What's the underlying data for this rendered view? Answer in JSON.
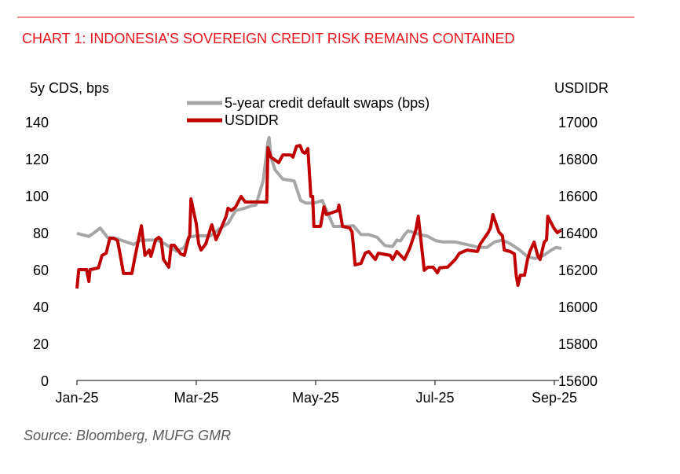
{
  "title": "CHART 1: INDONESIA’S SOVEREIGN CREDIT RISK REMAINS CONTAINED",
  "source": "Source: Bloomberg, MUFG GMR",
  "colors": {
    "accent": "#e8141c",
    "cds": "#a6a6a6",
    "usdidr": "#c00000"
  },
  "chart_data": {
    "type": "line",
    "title": "CHART 1: INDONESIA’S SOVEREIGN CREDIT RISK REMAINS CONTAINED",
    "x_unit": "months since Jan-25",
    "xlim": [
      0,
      8.15
    ],
    "x_ticks": [
      {
        "x": 0,
        "label": "Jan-25"
      },
      {
        "x": 2,
        "label": "Mar-25"
      },
      {
        "x": 4,
        "label": "May-25"
      },
      {
        "x": 6,
        "label": "Jul-25"
      },
      {
        "x": 8,
        "label": "Sep-25"
      }
    ],
    "ylabel_left": "5y CDS, bps",
    "ylabel_right": "USDIDR",
    "ylim_left": [
      0,
      140
    ],
    "ylim_right": [
      15600,
      17000
    ],
    "y_ticks_left": [
      "0",
      "20",
      "40",
      "60",
      "80",
      "100",
      "120",
      "140"
    ],
    "y_ticks_right": [
      "15600",
      "15800",
      "16000",
      "16200",
      "16400",
      "16600",
      "16800",
      "17000"
    ],
    "legend_position": "top-center",
    "series": [
      {
        "name": "5-year credit default swaps (bps)",
        "axis": "left",
        "points": [
          [
            0,
            79.6
          ],
          [
            0.2,
            78
          ],
          [
            0.29,
            80
          ],
          [
            0.39,
            82.5
          ],
          [
            0.51,
            77.5
          ],
          [
            0.68,
            76.6
          ],
          [
            0.95,
            73.6
          ],
          [
            1.05,
            75.7
          ],
          [
            1.21,
            76
          ],
          [
            1.34,
            76
          ],
          [
            1.47,
            74
          ],
          [
            1.67,
            70
          ],
          [
            1.8,
            72
          ],
          [
            1.87,
            77.5
          ],
          [
            2.0,
            78.3
          ],
          [
            2.24,
            78.3
          ],
          [
            2.37,
            81.7
          ],
          [
            2.53,
            85
          ],
          [
            2.66,
            92
          ],
          [
            2.79,
            93
          ],
          [
            2.92,
            94.5
          ],
          [
            3.0,
            95
          ],
          [
            3.12,
            108
          ],
          [
            3.2,
            129
          ],
          [
            3.22,
            131.5
          ],
          [
            3.25,
            121
          ],
          [
            3.32,
            114
          ],
          [
            3.45,
            109
          ],
          [
            3.64,
            108
          ],
          [
            3.68,
            104
          ],
          [
            3.75,
            97.4
          ],
          [
            3.84,
            96
          ],
          [
            3.97,
            96
          ],
          [
            4.11,
            97.4
          ],
          [
            4.17,
            93
          ],
          [
            4.3,
            83.4
          ],
          [
            4.5,
            83.4
          ],
          [
            4.63,
            83.8
          ],
          [
            4.76,
            79
          ],
          [
            4.89,
            79
          ],
          [
            5.03,
            77.5
          ],
          [
            5.16,
            73
          ],
          [
            5.29,
            72.5
          ],
          [
            5.36,
            76
          ],
          [
            5.42,
            75.5
          ],
          [
            5.49,
            79
          ],
          [
            5.55,
            81
          ],
          [
            5.75,
            79
          ],
          [
            5.88,
            78
          ],
          [
            6.01,
            75.7
          ],
          [
            6.14,
            75
          ],
          [
            6.34,
            75
          ],
          [
            6.47,
            74
          ],
          [
            6.61,
            73
          ],
          [
            6.74,
            72
          ],
          [
            6.87,
            72
          ],
          [
            7.0,
            75
          ],
          [
            7.13,
            76
          ],
          [
            7.26,
            74
          ],
          [
            7.42,
            70.6
          ],
          [
            7.55,
            67
          ],
          [
            7.68,
            66
          ],
          [
            7.82,
            67.7
          ],
          [
            7.95,
            70.6
          ],
          [
            8.03,
            72
          ],
          [
            8.12,
            71.5
          ]
        ]
      },
      {
        "name": "USDIDR",
        "axis": "right",
        "points": [
          [
            0,
            16098
          ],
          [
            0.03,
            16200
          ],
          [
            0.16,
            16200
          ],
          [
            0.2,
            16136
          ],
          [
            0.22,
            16200
          ],
          [
            0.29,
            16204
          ],
          [
            0.36,
            16210
          ],
          [
            0.42,
            16277
          ],
          [
            0.49,
            16289
          ],
          [
            0.55,
            16370
          ],
          [
            0.62,
            16370
          ],
          [
            0.68,
            16357
          ],
          [
            0.72,
            16289
          ],
          [
            0.78,
            16179
          ],
          [
            0.92,
            16179
          ],
          [
            0.97,
            16264
          ],
          [
            1.08,
            16438
          ],
          [
            1.14,
            16277
          ],
          [
            1.21,
            16306
          ],
          [
            1.24,
            16272
          ],
          [
            1.32,
            16362
          ],
          [
            1.37,
            16375
          ],
          [
            1.41,
            16362
          ],
          [
            1.45,
            16255
          ],
          [
            1.54,
            16213
          ],
          [
            1.58,
            16332
          ],
          [
            1.63,
            16332
          ],
          [
            1.74,
            16285
          ],
          [
            1.8,
            16277
          ],
          [
            1.87,
            16370
          ],
          [
            1.89,
            16383
          ],
          [
            1.91,
            16583
          ],
          [
            2.0,
            16447
          ],
          [
            2.04,
            16340
          ],
          [
            2.08,
            16306
          ],
          [
            2.16,
            16340
          ],
          [
            2.18,
            16362
          ],
          [
            2.26,
            16443
          ],
          [
            2.33,
            16362
          ],
          [
            2.39,
            16404
          ],
          [
            2.5,
            16489
          ],
          [
            2.53,
            16532
          ],
          [
            2.59,
            16520
          ],
          [
            2.66,
            16540
          ],
          [
            2.75,
            16596
          ],
          [
            2.82,
            16566
          ],
          [
            3.18,
            16566
          ],
          [
            3.2,
            16860
          ],
          [
            3.25,
            16809
          ],
          [
            3.38,
            16779
          ],
          [
            3.45,
            16821
          ],
          [
            3.58,
            16821
          ],
          [
            3.62,
            16809
          ],
          [
            3.68,
            16868
          ],
          [
            3.74,
            16872
          ],
          [
            3.78,
            16838
          ],
          [
            3.82,
            16830
          ],
          [
            3.87,
            16855
          ],
          [
            3.92,
            16596
          ],
          [
            3.95,
            16596
          ],
          [
            3.97,
            16434
          ],
          [
            4.08,
            16434
          ],
          [
            4.14,
            16540
          ],
          [
            4.18,
            16498
          ],
          [
            4.37,
            16519
          ],
          [
            4.39,
            16549
          ],
          [
            4.45,
            16434
          ],
          [
            4.57,
            16426
          ],
          [
            4.61,
            16404
          ],
          [
            4.66,
            16226
          ],
          [
            4.76,
            16234
          ],
          [
            4.83,
            16289
          ],
          [
            4.89,
            16298
          ],
          [
            5.0,
            16255
          ],
          [
            5.05,
            16289
          ],
          [
            5.25,
            16277
          ],
          [
            5.29,
            16255
          ],
          [
            5.36,
            16298
          ],
          [
            5.49,
            16255
          ],
          [
            5.58,
            16319
          ],
          [
            5.66,
            16396
          ],
          [
            5.68,
            16417
          ],
          [
            5.72,
            16489
          ],
          [
            5.82,
            16196
          ],
          [
            5.88,
            16213
          ],
          [
            5.97,
            16213
          ],
          [
            6.04,
            16183
          ],
          [
            6.08,
            16210
          ],
          [
            6.21,
            16213
          ],
          [
            6.34,
            16255
          ],
          [
            6.41,
            16289
          ],
          [
            6.54,
            16306
          ],
          [
            6.71,
            16298
          ],
          [
            6.76,
            16340
          ],
          [
            6.89,
            16400
          ],
          [
            6.93,
            16426
          ],
          [
            6.97,
            16498
          ],
          [
            7.07,
            16404
          ],
          [
            7.13,
            16383
          ],
          [
            7.16,
            16306
          ],
          [
            7.26,
            16298
          ],
          [
            7.33,
            16285
          ],
          [
            7.36,
            16170
          ],
          [
            7.39,
            16115
          ],
          [
            7.43,
            16170
          ],
          [
            7.5,
            16170
          ],
          [
            7.55,
            16255
          ],
          [
            7.59,
            16298
          ],
          [
            7.66,
            16349
          ],
          [
            7.72,
            16277
          ],
          [
            7.76,
            16255
          ],
          [
            7.83,
            16349
          ],
          [
            7.87,
            16362
          ],
          [
            7.89,
            16489
          ],
          [
            7.99,
            16426
          ],
          [
            8.05,
            16400
          ],
          [
            8.11,
            16413
          ]
        ]
      }
    ]
  }
}
